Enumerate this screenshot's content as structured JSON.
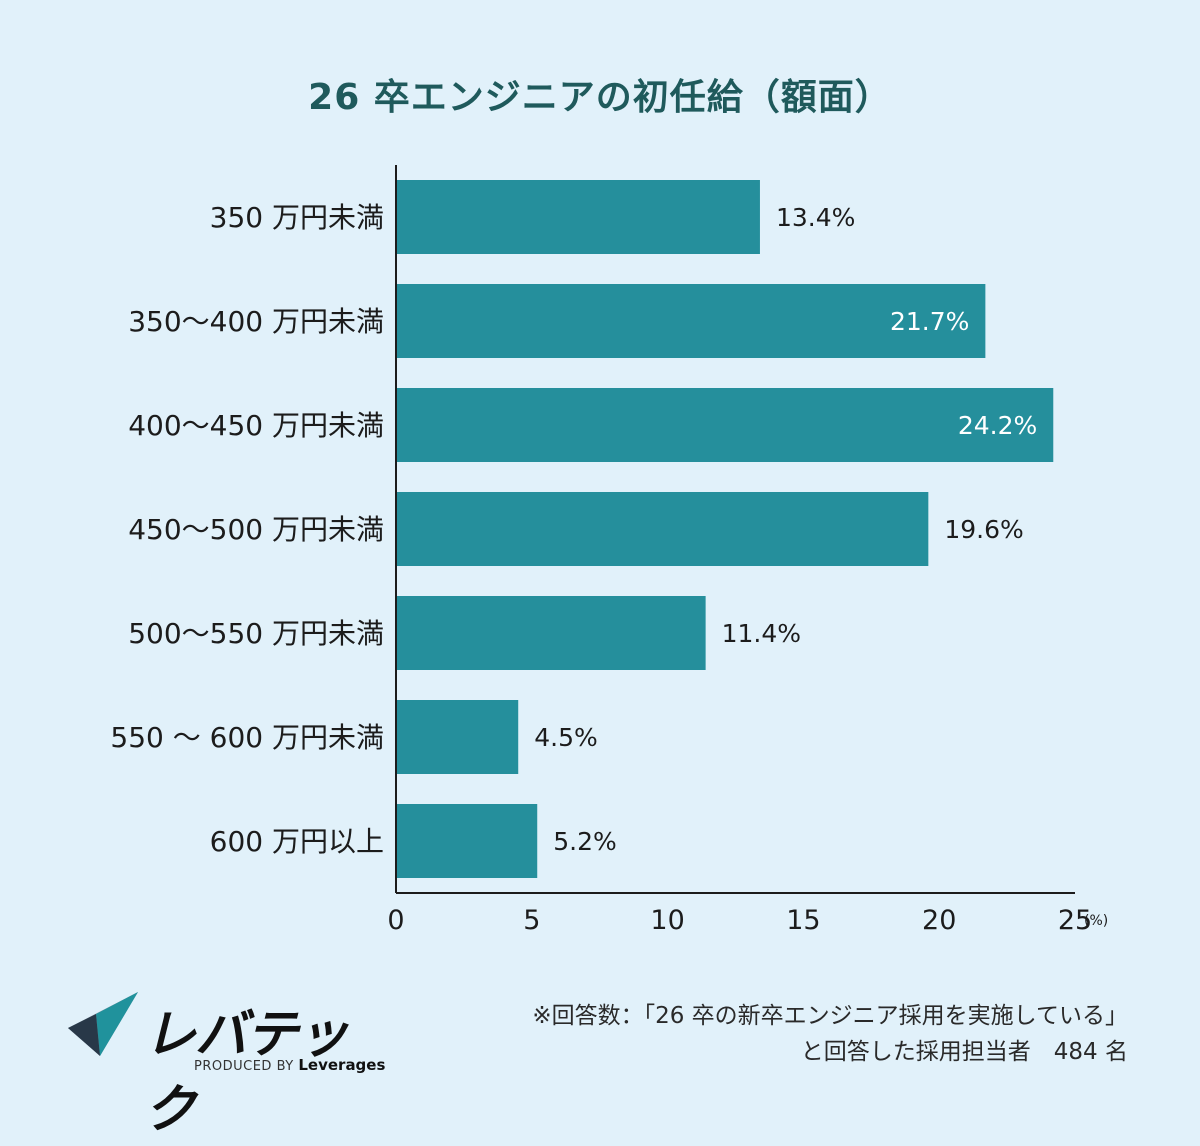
{
  "title": "26 卒エンジニアの初任給（額面）",
  "chart_data": {
    "type": "bar",
    "orientation": "horizontal",
    "title": "26 卒エンジニアの初任給（額面）",
    "categories": [
      "350 万円未満",
      "350〜400 万円未満",
      "400〜450 万円未満",
      "450〜500 万円未満",
      "500〜550 万円未満",
      "550 〜 600 万円未満",
      "600 万円以上"
    ],
    "values": [
      13.4,
      21.7,
      24.2,
      19.6,
      11.4,
      4.5,
      5.2
    ],
    "value_labels": [
      "13.4%",
      "21.7%",
      "24.2%",
      "19.6%",
      "11.4%",
      "4.5%",
      "5.2%"
    ],
    "x_ticks": [
      "0",
      "5",
      "10",
      "15",
      "20",
      "25"
    ],
    "x_unit": "(%)",
    "xlim": [
      0,
      25
    ],
    "grid": false,
    "bar_color": "#258f9c"
  },
  "footnote": {
    "line1": "※回答数：「26 卒の新卒エンジニア採用を実施している」",
    "line2": "と回答した採用担当者　484 名"
  },
  "logo": {
    "name": "レバテック",
    "produced_by": "PRODUCED BY",
    "brand": "Leverages"
  }
}
